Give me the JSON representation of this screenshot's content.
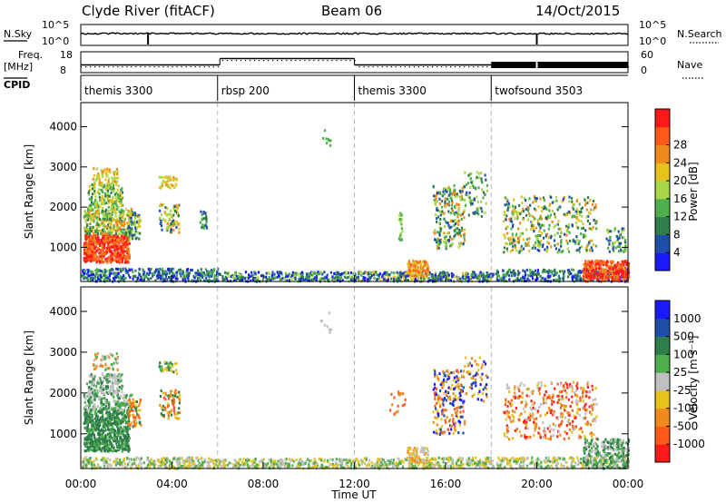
{
  "header": {
    "title": "Clyde River (fitACF)",
    "beam": "Beam 06",
    "date": "14/Oct/2015"
  },
  "strip_labels": {
    "nsky": "N.Sky",
    "nsky_ticks": [
      "10^5",
      "10^0"
    ],
    "nsearch": "N.Search",
    "nsearch_ticks": [
      "10^5",
      "10^0"
    ],
    "freq": "Freq.",
    "freq_unit": "[MHz]",
    "freq_ticks": [
      "18",
      "8"
    ],
    "nave": "Nave",
    "nave_ticks": [
      "60",
      "0"
    ],
    "cpid": "CPID"
  },
  "cpid_segments": [
    {
      "label": "themis 3300",
      "start_hour": 0
    },
    {
      "label": "rbsp 200",
      "start_hour": 6
    },
    {
      "label": "themis 3300",
      "start_hour": 12
    },
    {
      "label": "twofsound 3503",
      "start_hour": 18
    }
  ],
  "colors": {
    "power": [
      "#1a1aff",
      "#1f4fa8",
      "#2e7d4a",
      "#4faf4f",
      "#a8d84a",
      "#e6c21c",
      "#f08a1c",
      "#ff5a1a",
      "#ff1a1a"
    ],
    "velocity": [
      "#ff1a1a",
      "#ff5a1a",
      "#f08a1c",
      "#e6c21c",
      "#c0c0c0",
      "#4faf4f",
      "#2e7d4a",
      "#1f4fa8",
      "#1a1aff"
    ]
  },
  "chart_data": [
    {
      "type": "heatmap",
      "name": "power",
      "xlabel": "",
      "ylabel": "Slant Range [km]",
      "x_range_hours": [
        0,
        24
      ],
      "ylim": [
        150,
        4600
      ],
      "yticks": [
        "1000",
        "2000",
        "3000",
        "4000"
      ],
      "colorbar_label": "Power [dB]",
      "colorbar_ticks": [
        "4",
        "8",
        "12",
        "16",
        "20",
        "24",
        "28"
      ],
      "colorbar_range": [
        0,
        32
      ]
    },
    {
      "type": "heatmap",
      "name": "velocity",
      "xlabel": "Time UT",
      "ylabel": "Slant Range [km]",
      "x_range_hours": [
        0,
        24
      ],
      "xticks": [
        "00:00",
        "04:00",
        "08:00",
        "12:00",
        "16:00",
        "20:00",
        "00:00"
      ],
      "ylim": [
        150,
        4600
      ],
      "yticks": [
        "1000",
        "2000",
        "3000",
        "4000"
      ],
      "colorbar_label": "Velocity [m s⁻¹]",
      "colorbar_ticks": [
        "1000",
        "500",
        "100",
        "25",
        "-25",
        "-100",
        "-500",
        "-1000"
      ]
    }
  ]
}
